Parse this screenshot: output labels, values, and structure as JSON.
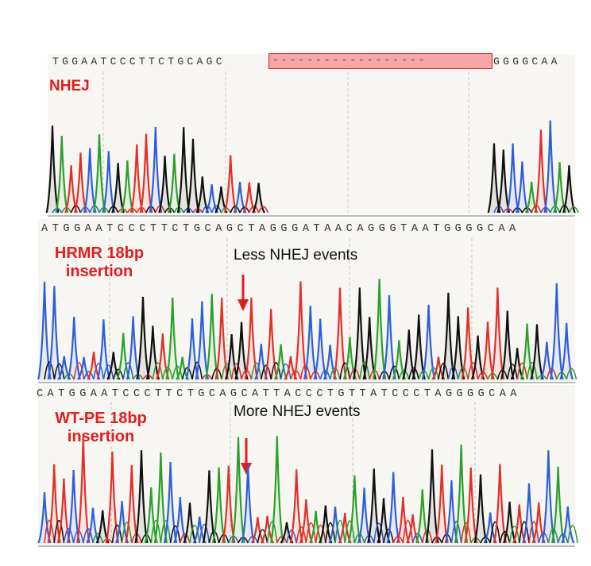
{
  "panels": [
    {
      "label_lines": [
        "NHEJ"
      ],
      "sequence_left": "TGGAATCCCTTCTGCAGC",
      "deletion_text": "------------------",
      "sequence_right": "GGGGCAA",
      "annotation": "",
      "arrow": false
    },
    {
      "label_lines": [
        "HRMR 18bp",
        "insertion"
      ],
      "sequence": "ATGGAATCCCTTCTGCAGCTAGGGATAACAGGGTAATGGGGCAA",
      "annotation": "Less NHEJ events",
      "arrow": true
    },
    {
      "label_lines": [
        "WT-PE 18bp",
        "insertion"
      ],
      "sequence": "CATGGAATCCCTTCTGCAGCATTACCCTGTTATCCCTAGGGGCAA",
      "annotation": "More NHEJ events",
      "arrow": true
    }
  ],
  "colors": {
    "A": "#2ca02c",
    "C": "#2e5fd6",
    "G": "#111111",
    "T": "#e0302a",
    "label": "#e11d1d",
    "deletion_fill": "#f6a6a6",
    "deletion_border": "#d42222",
    "arrow": "#e11d1d",
    "panel_bg": "#f7f6f2"
  }
}
